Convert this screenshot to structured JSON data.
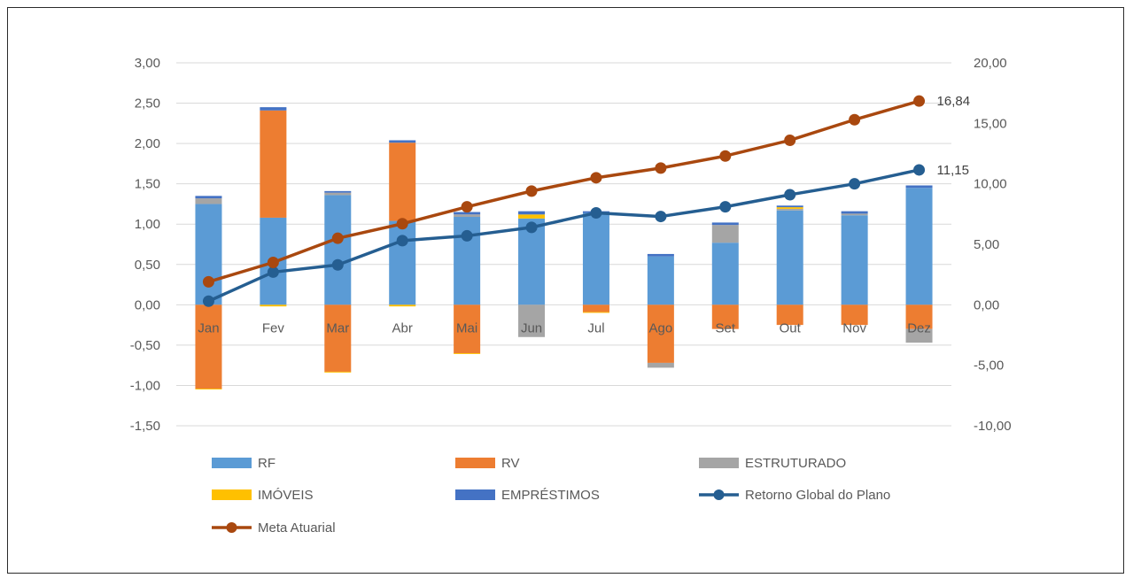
{
  "chart_data": {
    "type": "bar",
    "title": "",
    "xlabel": "",
    "ylabel": "",
    "categories": [
      "Jan",
      "Fev",
      "Mar",
      "Abr",
      "Mai",
      "Jun",
      "Jul",
      "Ago",
      "Set",
      "Out",
      "Nov",
      "Dez"
    ],
    "y_left": {
      "range": [
        -1.5,
        3.0
      ],
      "ticks": [
        3.0,
        2.5,
        2.0,
        1.5,
        1.0,
        0.5,
        0.0,
        -0.5,
        -1.0,
        -1.5
      ],
      "tick_labels": [
        "3,00",
        "2,50",
        "2,00",
        "1,50",
        "1,00",
        "0,50",
        "0,00",
        "-0,50",
        "-1,00",
        "-1,50"
      ]
    },
    "y_right": {
      "range": [
        -10.0,
        20.0
      ],
      "ticks": [
        20.0,
        15.0,
        10.0,
        5.0,
        0.0,
        -5.0,
        -10.0
      ],
      "tick_labels": [
        "20,00",
        "15,00",
        "10,00",
        "5,00",
        "0,00",
        "-5,00",
        "-10,00"
      ]
    },
    "grid": true,
    "legend_position": "bottom",
    "bar_series": [
      {
        "name": "RF",
        "color": "#5B9BD5",
        "values": [
          1.25,
          1.08,
          1.36,
          1.04,
          1.09,
          1.07,
          1.14,
          0.6,
          0.77,
          1.17,
          1.11,
          1.45
        ]
      },
      {
        "name": "RV",
        "color": "#ED7D31",
        "values": [
          -1.04,
          1.33,
          -0.83,
          0.97,
          -0.6,
          0.0,
          -0.09,
          -0.72,
          -0.3,
          -0.25,
          -0.25,
          -0.3
        ]
      },
      {
        "name": "ESTRUTURADO",
        "color": "#A5A5A5",
        "values": [
          0.07,
          0.0,
          0.03,
          0.0,
          0.03,
          -0.4,
          0.0,
          -0.06,
          0.22,
          0.02,
          0.02,
          -0.17
        ]
      },
      {
        "name": "IMÓVEIS",
        "color": "#FFC000",
        "values": [
          -0.01,
          -0.02,
          -0.01,
          -0.02,
          -0.01,
          0.05,
          -0.01,
          0.0,
          0.0,
          0.02,
          0.0,
          0.0
        ]
      },
      {
        "name": "EMPRÉSTIMOS",
        "color": "#4472C4",
        "values": [
          0.03,
          0.04,
          0.02,
          0.03,
          0.03,
          0.04,
          0.02,
          0.03,
          0.03,
          0.02,
          0.03,
          0.03
        ]
      }
    ],
    "line_series": [
      {
        "name": "Retorno Global do Plano",
        "color": "#255E91",
        "axis": "right",
        "values": [
          0.3,
          2.7,
          3.3,
          5.3,
          5.7,
          6.4,
          7.6,
          7.3,
          8.1,
          9.1,
          10.0,
          11.15
        ],
        "end_label": "11,15"
      },
      {
        "name": "Meta Atuarial",
        "color": "#A9480F",
        "axis": "right",
        "values": [
          1.9,
          3.5,
          5.5,
          6.7,
          8.1,
          9.4,
          10.5,
          11.3,
          12.3,
          13.6,
          15.3,
          16.84
        ],
        "end_label": "16,84"
      }
    ]
  }
}
